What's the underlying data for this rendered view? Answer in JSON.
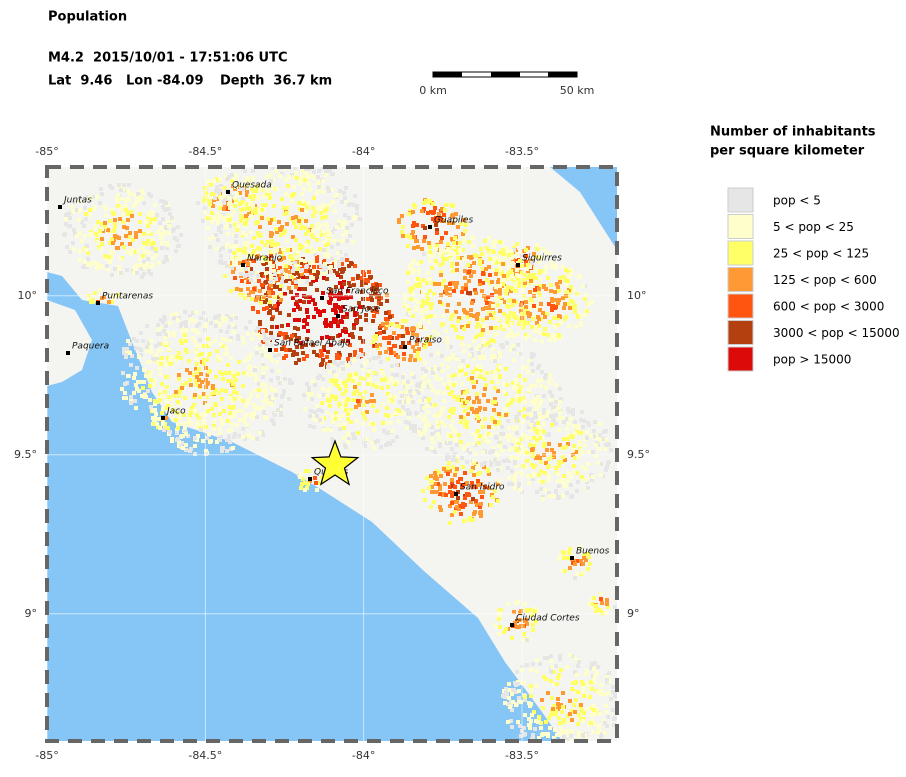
{
  "header": {
    "title": "Population",
    "event": "M4.2  2015/10/01 - 17:51:06 UTC",
    "lat": "Lat  9.46",
    "lon": "Lon -84.09",
    "depth": "Depth  36.7 km"
  },
  "scale_bar": {
    "start": "0 km",
    "end": "50 km"
  },
  "map": {
    "xlim": [
      -85,
      -83.2
    ],
    "ylim": [
      8.6,
      10.405
    ],
    "xticks": [
      {
        "value": -85,
        "label": "-85°"
      },
      {
        "value": -84.5,
        "label": "-84.5°"
      },
      {
        "value": -84,
        "label": "-84°"
      },
      {
        "value": -83.5,
        "label": "-83.5°"
      }
    ],
    "yticks": [
      {
        "value": 10,
        "label": "10°"
      },
      {
        "value": 9.5,
        "label": "9.5°"
      },
      {
        "value": 9,
        "label": "9°"
      }
    ],
    "cities": [
      "Juntas",
      "Quesada",
      "Guapiles",
      "Naranjo",
      "Siquirres",
      "Puntarenas",
      "San Francisco",
      "San Jose",
      "Paquera",
      "San Rafael Abajo",
      "Paraiso",
      "Jaco",
      "Quepos",
      "San Isidro",
      "Buenos",
      "Ciudad Cortes"
    ]
  },
  "legend": {
    "title": [
      "Number of inhabitants",
      "per square kilometer"
    ],
    "items": [
      {
        "label": "pop < 5",
        "color": "#e6e6e6"
      },
      {
        "label": "5 < pop < 25",
        "color": "#ffffcc"
      },
      {
        "label": "25 < pop < 125",
        "color": "#ffff66"
      },
      {
        "label": "125 < pop < 600",
        "color": "#ff9933"
      },
      {
        "label": "600 < pop < 3000",
        "color": "#ff5511"
      },
      {
        "label": "3000 < pop < 15000",
        "color": "#b5400f"
      },
      {
        "label": "pop > 15000",
        "color": "#dd0a0a"
      }
    ]
  }
}
